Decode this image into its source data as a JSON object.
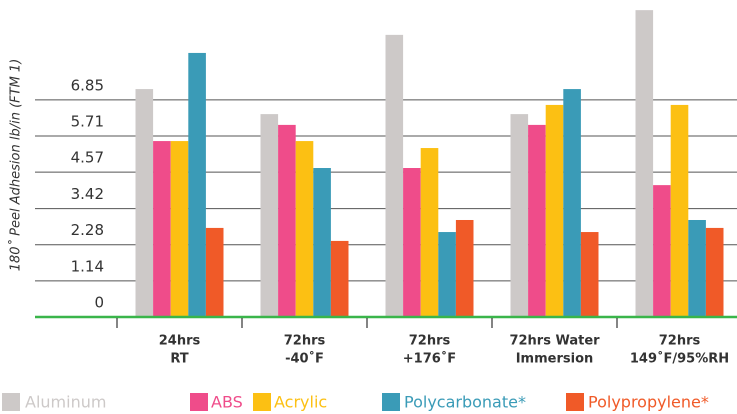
{
  "chart_data": {
    "type": "bar",
    "y_label": "180˚ Peel Adhesion lb/in (FTM 1)",
    "categories": [
      [
        "24hrs",
        "RT"
      ],
      [
        "72hrs",
        "-40˚F"
      ],
      [
        "72hrs",
        "+176˚F"
      ],
      [
        "72hrs Water",
        "Immersion"
      ],
      [
        "72hrs",
        "149˚F/95%RH"
      ]
    ],
    "series": [
      {
        "name": "Aluminum",
        "color": "#cdc9c8",
        "values": [
          7.19,
          6.4,
          8.9,
          6.4,
          9.68
        ]
      },
      {
        "name": "ABS",
        "color": "#ef4c8a",
        "values": [
          5.55,
          6.06,
          4.7,
          6.06,
          4.16
        ]
      },
      {
        "name": "Acrylic",
        "color": "#fcc013",
        "values": [
          5.55,
          5.55,
          5.33,
          6.69,
          6.69
        ]
      },
      {
        "name": "Polycarbonate*",
        "color": "#3a9bb7",
        "values": [
          8.33,
          4.7,
          2.68,
          7.19,
          3.06
        ]
      },
      {
        "name": "Polypropylene*",
        "color": "#f05a28",
        "values": [
          2.81,
          2.4,
          3.06,
          2.68,
          2.81
        ]
      }
    ],
    "ylim": [
      0,
      10
    ],
    "yticks": [
      0,
      1.14,
      2.28,
      3.42,
      4.57,
      5.71,
      6.85
    ],
    "grid": true,
    "legend": "bottom"
  }
}
